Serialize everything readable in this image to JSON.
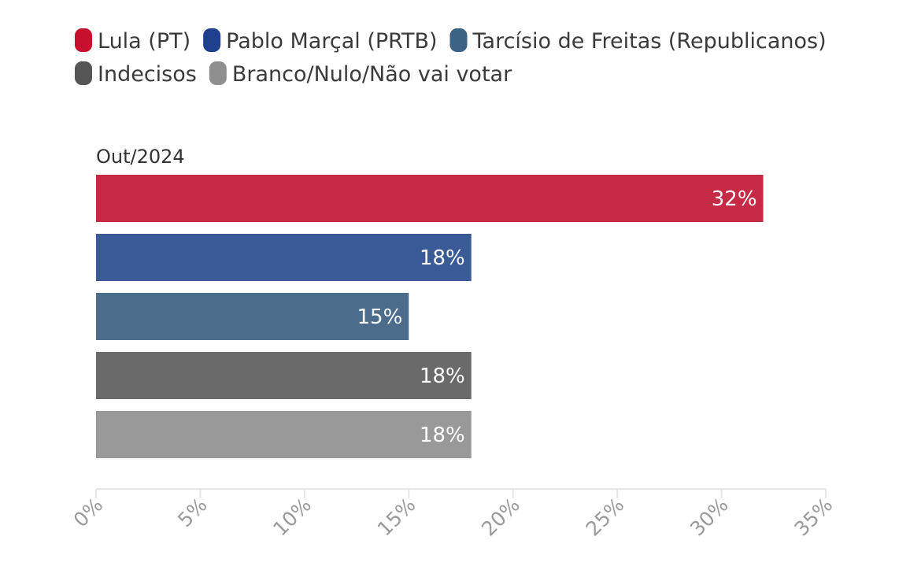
{
  "chart_data": {
    "type": "bar",
    "orientation": "horizontal",
    "group_label": "Out/2024",
    "categories": [
      "Lula (PT)",
      "Pablo Marçal (PRTB)",
      "Tarcísio de Freitas (Republicanos)",
      "Indecisos",
      "Branco/Nulo/Não vai votar"
    ],
    "values": [
      32,
      18,
      15,
      18,
      18
    ],
    "value_labels": [
      "32%",
      "18%",
      "15%",
      "18%",
      "18%"
    ],
    "colors": [
      "#c62a44",
      "#3a5a98",
      "#4b6d8b",
      "#6a6a6a",
      "#999999"
    ],
    "legend_colors": [
      "#c8102e",
      "#1f3f8f",
      "#3d6384",
      "#555555",
      "#8f8f8f"
    ],
    "legend_position": "top",
    "xlim": [
      0,
      35
    ],
    "x_ticks": [
      0,
      5,
      10,
      15,
      20,
      25,
      30,
      35
    ],
    "x_tick_labels": [
      "0%",
      "5%",
      "10%",
      "15%",
      "20%",
      "25%",
      "30%",
      "35%"
    ],
    "grid": false
  }
}
